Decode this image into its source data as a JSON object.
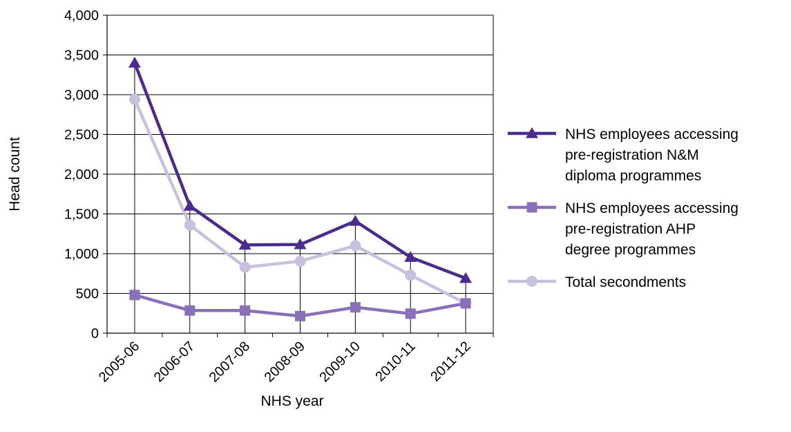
{
  "chart_data": {
    "type": "line",
    "categories": [
      "2005-06",
      "2006-07",
      "2007-08",
      "2008-09",
      "2009-10",
      "2010-11",
      "2011-12"
    ],
    "series": [
      {
        "name": "NHS employees accessing pre-registration N&M diploma programmes",
        "name_lines": [
          "NHS employees accessing",
          "pre-registration N&M",
          "diploma programmes"
        ],
        "values": [
          3400,
          1600,
          1110,
          1115,
          1410,
          955,
          690
        ],
        "color": "#4b2c8e",
        "marker": "triangle"
      },
      {
        "name": "NHS employees accessing pre-registration AHP degree programmes",
        "name_lines": [
          "NHS employees accessing",
          "pre-registration AHP",
          "degree programmes"
        ],
        "values": [
          480,
          285,
          285,
          215,
          325,
          245,
          375
        ],
        "color": "#8a70b8",
        "marker": "square"
      },
      {
        "name": "Total secondments",
        "name_lines": [
          "Total secondments"
        ],
        "values": [
          2940,
          1360,
          830,
          905,
          1100,
          730,
          375
        ],
        "color": "#c9c0de",
        "marker": "circle"
      }
    ],
    "yticks": [
      "0",
      "500",
      "1,000",
      "1,500",
      "2,000",
      "2,500",
      "3,000",
      "3,500",
      "4,000"
    ],
    "ylim": [
      0,
      4000
    ],
    "xlabel": "NHS year",
    "ylabel": "Head count",
    "grid": true,
    "legend_position": "right"
  }
}
